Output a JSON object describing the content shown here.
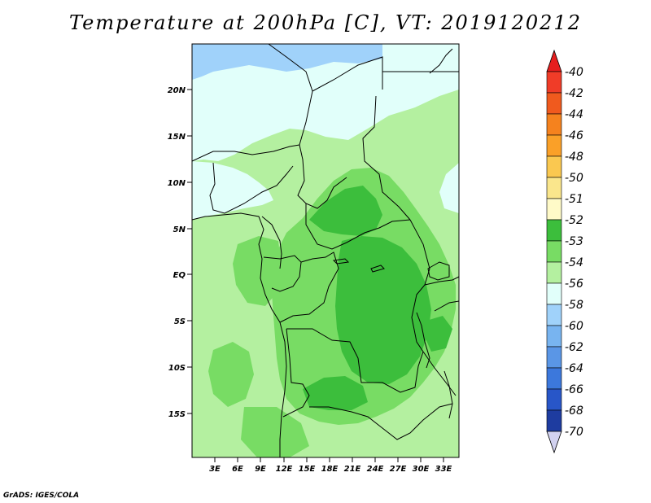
{
  "title": "Temperature at 200hPa [C], VT: 2019120212",
  "credit": "GrADS: IGES/COLA",
  "map": {
    "lat_labels": [
      "20N",
      "15N",
      "10N",
      "5N",
      "EQ",
      "5S",
      "10S",
      "15S"
    ],
    "lon_labels": [
      "3E",
      "6E",
      "9E",
      "12E",
      "15E",
      "18E",
      "21E",
      "24E",
      "27E",
      "30E",
      "33E"
    ]
  },
  "colorbar": {
    "levels": [
      "-40",
      "-42",
      "-44",
      "-46",
      "-48",
      "-50",
      "-51",
      "-52",
      "-53",
      "-54",
      "-56",
      "-58",
      "-60",
      "-62",
      "-64",
      "-66",
      "-68",
      "-70"
    ],
    "colors": [
      "#f03c28",
      "#f05a1e",
      "#f5821e",
      "#faa028",
      "#fac850",
      "#fae68c",
      "#fffac8",
      "#3cbe3c",
      "#78dc64",
      "#b4f0a0",
      "#e1fffa",
      "#a0d2fa",
      "#78b4f0",
      "#5a96e6",
      "#3c78dc",
      "#2856c8",
      "#1e3ca0",
      "#140a78"
    ],
    "top_color": "#e61e1e",
    "bottom_color": "#d2d2f0"
  },
  "legend_colors": {
    "minus51": "#fffac8",
    "minus52": "#3cbe3c",
    "minus53": "#78dc64",
    "minus54": "#b4f0a0",
    "minus56": "#e1fffa",
    "minus58": "#a0d2fa",
    "coast": "#000000"
  }
}
